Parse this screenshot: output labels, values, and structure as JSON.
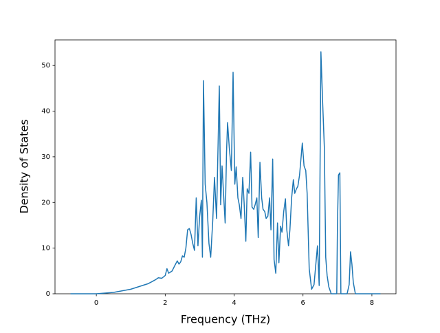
{
  "chart_data": {
    "type": "line",
    "xlabel": "Frequency (THz)",
    "ylabel": "Density of States",
    "x": [
      -0.75,
      0,
      0.5,
      1.0,
      1.5,
      1.7,
      1.8,
      1.9,
      2.0,
      2.05,
      2.1,
      2.2,
      2.3,
      2.35,
      2.4,
      2.45,
      2.5,
      2.55,
      2.6,
      2.65,
      2.7,
      2.75,
      2.8,
      2.85,
      2.9,
      2.95,
      3.0,
      3.05,
      3.08,
      3.11,
      3.16,
      3.21,
      3.27,
      3.32,
      3.38,
      3.43,
      3.49,
      3.57,
      3.61,
      3.65,
      3.7,
      3.74,
      3.78,
      3.81,
      3.86,
      3.92,
      3.97,
      4.02,
      4.06,
      4.11,
      4.15,
      4.2,
      4.25,
      4.29,
      4.34,
      4.38,
      4.43,
      4.48,
      4.52,
      4.57,
      4.61,
      4.66,
      4.7,
      4.75,
      4.8,
      4.84,
      4.89,
      4.93,
      4.98,
      5.03,
      5.07,
      5.12,
      5.16,
      5.21,
      5.26,
      5.3,
      5.35,
      5.39,
      5.44,
      5.49,
      5.53,
      5.58,
      5.62,
      5.67,
      5.72,
      5.76,
      5.81,
      5.85,
      5.9,
      5.98,
      6.03,
      6.08,
      6.12,
      6.18,
      6.25,
      6.32,
      6.42,
      6.47,
      6.52,
      6.57,
      6.62,
      6.66,
      6.7,
      6.75,
      6.82,
      6.98,
      7.0,
      7.03,
      7.07,
      7.1,
      7.28,
      7.34,
      7.38,
      7.42,
      7.46,
      7.52,
      8.25
    ],
    "series": [
      {
        "name": "DOS",
        "color": "#1f77b4",
        "values": [
          0,
          0,
          0.3,
          1.0,
          2.2,
          3.0,
          3.5,
          3.4,
          4.0,
          5.5,
          4.5,
          5.0,
          6.5,
          7.2,
          6.5,
          7.0,
          8.3,
          8.0,
          10,
          14,
          14.3,
          13,
          11,
          9.5,
          21,
          10.5,
          17,
          20.5,
          8,
          46.7,
          24,
          20,
          11,
          8,
          16,
          25.5,
          16.5,
          45.5,
          19.5,
          28,
          21,
          15.5,
          31,
          37.5,
          32,
          27,
          48.5,
          24,
          27.8,
          21,
          19.5,
          16.5,
          25.5,
          20,
          11.5,
          23,
          22,
          31,
          19,
          18.5,
          19.5,
          21,
          12.3,
          28.8,
          21,
          18.5,
          18,
          16.5,
          17,
          21,
          14,
          29.5,
          7.5,
          4.5,
          15.5,
          6.8,
          14.8,
          13.5,
          18,
          20.8,
          14,
          10.5,
          14,
          21,
          25,
          22,
          23,
          23.5,
          26,
          33,
          28,
          27,
          22,
          5.5,
          1,
          2,
          10.5,
          1.8,
          53,
          42,
          32,
          8,
          4,
          1.5,
          0,
          0,
          15,
          26,
          26.5,
          0,
          0,
          2,
          9.2,
          6.5,
          2.5,
          0,
          0
        ]
      }
    ],
    "xlim": [
      -1.2,
      8.7
    ],
    "ylim": [
      0,
      55.6
    ],
    "xticks": [
      0,
      2,
      4,
      6,
      8
    ],
    "yticks": [
      0,
      10,
      20,
      30,
      40,
      50
    ]
  }
}
